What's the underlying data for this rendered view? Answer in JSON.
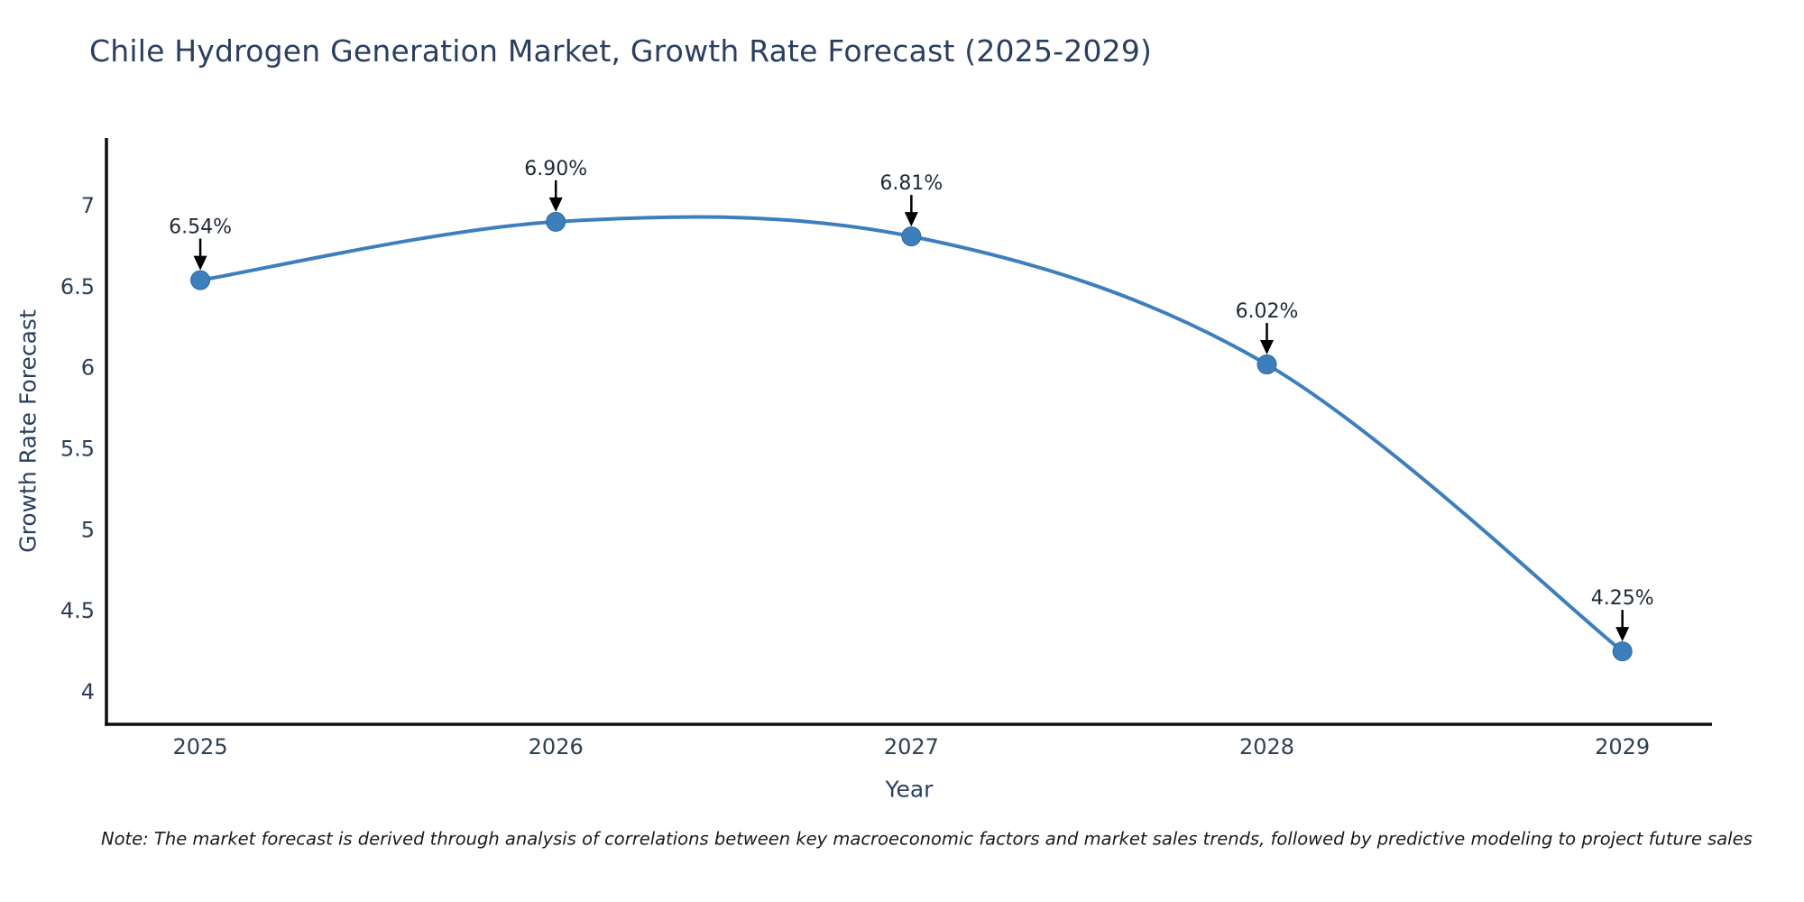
{
  "title": "Chile Hydrogen Generation Market, Growth Rate Forecast (2025-2029)",
  "axes": {
    "x_title": "Year",
    "y_title": "Growth Rate Forecast",
    "x_tick_labels": [
      "2025",
      "2026",
      "2027",
      "2028",
      "2029"
    ],
    "y_tick_labels": [
      "7",
      "6.5",
      "6",
      "5.5",
      "5",
      "4.5",
      "4"
    ]
  },
  "note": "Note: The market forecast is derived through analysis of correlations between key macroeconomic factors and market sales trends, followed by predictive modeling to project future sales",
  "colors": {
    "line": "#3d7ebd",
    "marker": "#3d7ebd",
    "marker_edge": "#30699f",
    "axis_line": "#0d0d0d",
    "title_text": "#2a3f5f",
    "tick_text": "#2e3f54",
    "annotation_text": "#202a38",
    "arrow": "#000000",
    "note_text": "#1a1a1a",
    "background": "#ffffff"
  },
  "chart_data": {
    "type": "line",
    "title": "Chile Hydrogen Generation Market, Growth Rate Forecast (2025-2029)",
    "xlabel": "Year",
    "ylabel": "Growth Rate Forecast",
    "x": [
      2025,
      2026,
      2027,
      2028,
      2029
    ],
    "values": [
      6.54,
      6.9,
      6.81,
      6.02,
      4.25
    ],
    "point_labels": [
      "6.54%",
      "6.90%",
      "6.81%",
      "6.02%",
      "4.25%"
    ],
    "y_ticks": [
      7,
      6.5,
      6,
      5.5,
      5,
      4.5,
      4
    ],
    "xlim": [
      2024.736,
      2029.252
    ],
    "ylim": [
      3.8,
      7.417
    ],
    "line_shape": "spline",
    "grid": false,
    "legend": false,
    "markers": true,
    "annotations": "percentage value label with downward arrow above each data point"
  }
}
